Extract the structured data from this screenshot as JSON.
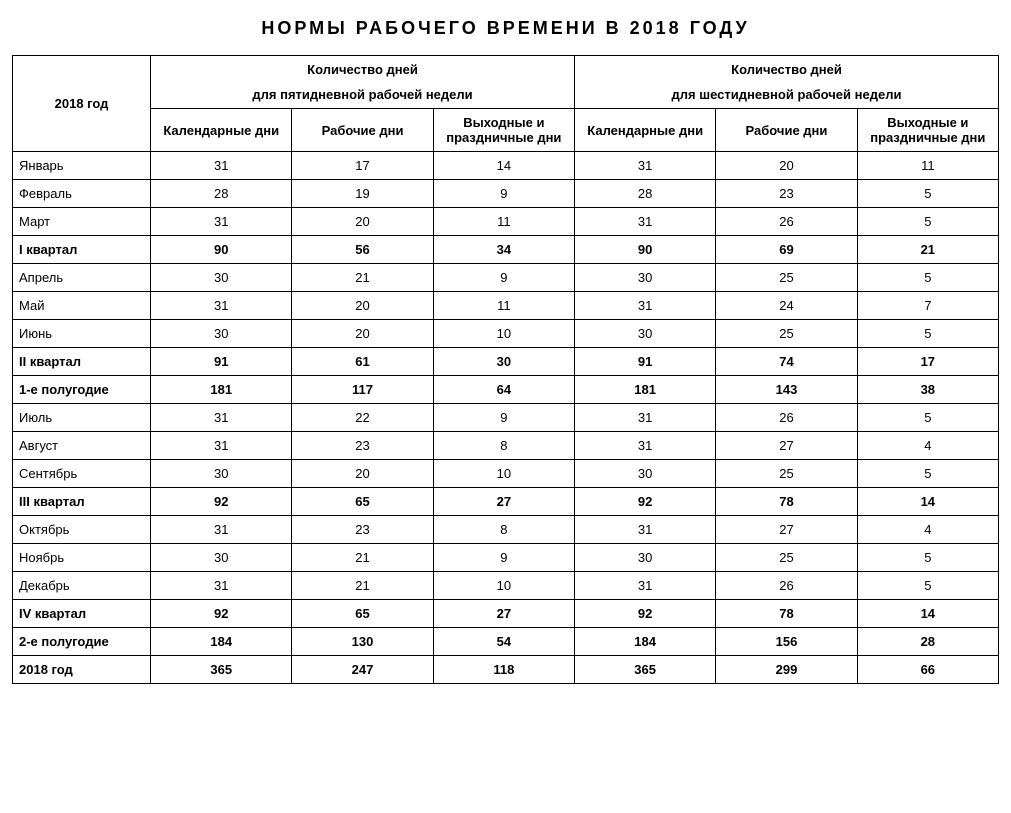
{
  "title": "НОРМЫ РАБОЧЕГО ВРЕМЕНИ В 2018 ГОДУ",
  "year_header": "2018 год",
  "group5_line1": "Количество дней",
  "group5_line2": "для пятидневной рабочей недели",
  "group6_line1": "Количество дней",
  "group6_line2": "для шестидневной рабочей недели",
  "col_cal": "Календарные дни",
  "col_work": "Рабочие дни",
  "col_off": "Выходные и праздничные дни",
  "rows": [
    {
      "label": "Январь",
      "v": [
        "31",
        "17",
        "14",
        "31",
        "20",
        "11"
      ],
      "bold": false
    },
    {
      "label": "Февраль",
      "v": [
        "28",
        "19",
        "9",
        "28",
        "23",
        "5"
      ],
      "bold": false
    },
    {
      "label": "Март",
      "v": [
        "31",
        "20",
        "11",
        "31",
        "26",
        "5"
      ],
      "bold": false
    },
    {
      "label": "I квартал",
      "v": [
        "90",
        "56",
        "34",
        "90",
        "69",
        "21"
      ],
      "bold": true
    },
    {
      "label": "Апрель",
      "v": [
        "30",
        "21",
        "9",
        "30",
        "25",
        "5"
      ],
      "bold": false
    },
    {
      "label": "Май",
      "v": [
        "31",
        "20",
        "11",
        "31",
        "24",
        "7"
      ],
      "bold": false
    },
    {
      "label": "Июнь",
      "v": [
        "30",
        "20",
        "10",
        "30",
        "25",
        "5"
      ],
      "bold": false
    },
    {
      "label": "II квартал",
      "v": [
        "91",
        "61",
        "30",
        "91",
        "74",
        "17"
      ],
      "bold": true
    },
    {
      "label": "1-е полугодие",
      "v": [
        "181",
        "117",
        "64",
        "181",
        "143",
        "38"
      ],
      "bold": true
    },
    {
      "label": "Июль",
      "v": [
        "31",
        "22",
        "9",
        "31",
        "26",
        "5"
      ],
      "bold": false
    },
    {
      "label": "Август",
      "v": [
        "31",
        "23",
        "8",
        "31",
        "27",
        "4"
      ],
      "bold": false
    },
    {
      "label": "Сентябрь",
      "v": [
        "30",
        "20",
        "10",
        "30",
        "25",
        "5"
      ],
      "bold": false
    },
    {
      "label": "III квартал",
      "v": [
        "92",
        "65",
        "27",
        "92",
        "78",
        "14"
      ],
      "bold": true
    },
    {
      "label": "Октябрь",
      "v": [
        "31",
        "23",
        "8",
        "31",
        "27",
        "4"
      ],
      "bold": false
    },
    {
      "label": "Ноябрь",
      "v": [
        "30",
        "21",
        "9",
        "30",
        "25",
        "5"
      ],
      "bold": false
    },
    {
      "label": "Декабрь",
      "v": [
        "31",
        "21",
        "10",
        "31",
        "26",
        "5"
      ],
      "bold": false
    },
    {
      "label": "IV квартал",
      "v": [
        "92",
        "65",
        "27",
        "92",
        "78",
        "14"
      ],
      "bold": true
    },
    {
      "label": "2-е полугодие",
      "v": [
        "184",
        "130",
        "54",
        "184",
        "156",
        "28"
      ],
      "bold": true
    },
    {
      "label": "2018 год",
      "v": [
        "365",
        "247",
        "118",
        "365",
        "299",
        "66"
      ],
      "bold": true
    }
  ]
}
